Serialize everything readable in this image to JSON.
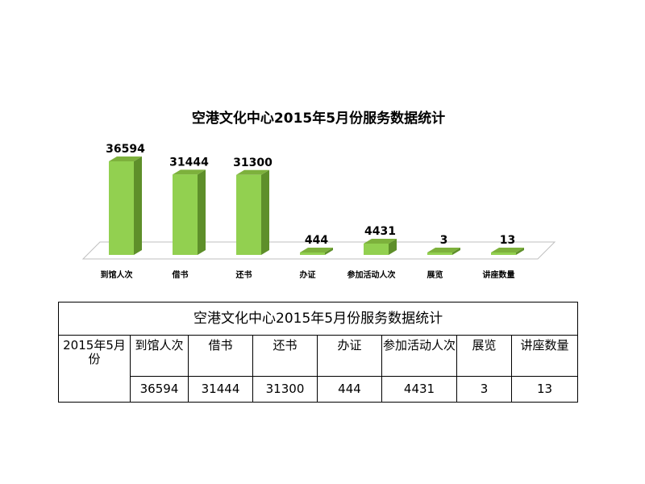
{
  "chart_data": {
    "type": "bar",
    "title": "空港文化中心2015年5月份服务数据统计",
    "categories": [
      "到馆人次",
      "借书",
      "还书",
      "办证",
      "参加活动人次",
      "展览",
      "讲座数量"
    ],
    "values": [
      36594,
      31444,
      31300,
      444,
      4431,
      3,
      13
    ],
    "value_labels": [
      "36594",
      "31444",
      "31300",
      "444",
      "4431",
      "3",
      "13"
    ],
    "colors": {
      "bar_front": "#92D050",
      "bar_side": "#5E8F2A",
      "bar_top": "#7DB13C",
      "floor": "#FFFFFF",
      "floor_edge": "#BFBFBF"
    }
  },
  "table": {
    "title": "空港文化中心2015年5月份服务数据统计",
    "period_label": "2015年5月份",
    "headers": [
      "到馆人次",
      "借书",
      "还书",
      "办证",
      "参加活动人次",
      "展览",
      "讲座数量"
    ],
    "values": [
      "36594",
      "31444",
      "31300",
      "444",
      "4431",
      "3",
      "13"
    ]
  }
}
